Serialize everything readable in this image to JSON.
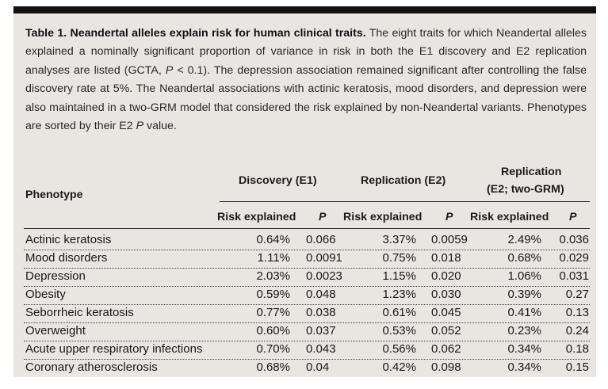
{
  "caption": {
    "bold": "Table 1. Neandertal alleles explain risk for human clinical traits.",
    "text_a": " The eight traits for which Neandertal alleles explained a nominally significant proportion of variance in risk in both the E1 discovery and E2 replication analyses are listed (GCTA, ",
    "p_italic": "P",
    "text_b": " < 0.1). The depression association remained significant after controlling the false discovery rate at 5%. The Neandertal associations with actinic keratosis, mood disorders, and depression were also maintained in a two-GRM model that considered the risk explained by non-Neandertal variants. Phenotypes are sorted by their E2 ",
    "p_italic2": "P",
    "text_c": " value."
  },
  "header": {
    "phenotype": "Phenotype",
    "groups": [
      "Discovery (E1)",
      "Replication (E2)",
      "Replication",
      "(E2; two-GRM)"
    ],
    "risk_explained": "Risk explained",
    "p_label": "P"
  },
  "rows": [
    {
      "phenotype": "Actinic keratosis",
      "e1_risk": "0.64%",
      "e1_p": "0.066",
      "e2_risk": "3.37%",
      "e2_p": "0.0059",
      "grm_risk": "2.49%",
      "grm_p": "0.036"
    },
    {
      "phenotype": "Mood disorders",
      "e1_risk": "1.11%",
      "e1_p": "0.0091",
      "e2_risk": "0.75%",
      "e2_p": "0.018",
      "grm_risk": "0.68%",
      "grm_p": "0.029"
    },
    {
      "phenotype": "Depression",
      "e1_risk": "2.03%",
      "e1_p": "0.0023",
      "e2_risk": "1.15%",
      "e2_p": "0.020",
      "grm_risk": "1.06%",
      "grm_p": "0.031"
    },
    {
      "phenotype": "Obesity",
      "e1_risk": "0.59%",
      "e1_p": "0.048",
      "e2_risk": "1.23%",
      "e2_p": "0.030",
      "grm_risk": "0.39%",
      "grm_p": "0.27"
    },
    {
      "phenotype": "Seborrheic keratosis",
      "e1_risk": "0.77%",
      "e1_p": "0.038",
      "e2_risk": "0.61%",
      "e2_p": "0.045",
      "grm_risk": "0.41%",
      "grm_p": "0.13"
    },
    {
      "phenotype": "Overweight",
      "e1_risk": "0.60%",
      "e1_p": "0.037",
      "e2_risk": "0.53%",
      "e2_p": "0.052",
      "grm_risk": "0.23%",
      "grm_p": "0.24"
    },
    {
      "phenotype": "Acute upper respiratory infections",
      "e1_risk": "0.70%",
      "e1_p": "0.043",
      "e2_risk": "0.56%",
      "e2_p": "0.062",
      "grm_risk": "0.34%",
      "grm_p": "0.18"
    },
    {
      "phenotype": "Coronary atherosclerosis",
      "e1_risk": "0.68%",
      "e1_p": "0.04",
      "e2_risk": "0.42%",
      "e2_p": "0.098",
      "grm_risk": "0.34%",
      "grm_p": "0.15"
    }
  ],
  "colors": {
    "background": "#e9e5e0",
    "top_bar": "#111111",
    "text": "#1a1a1a"
  }
}
